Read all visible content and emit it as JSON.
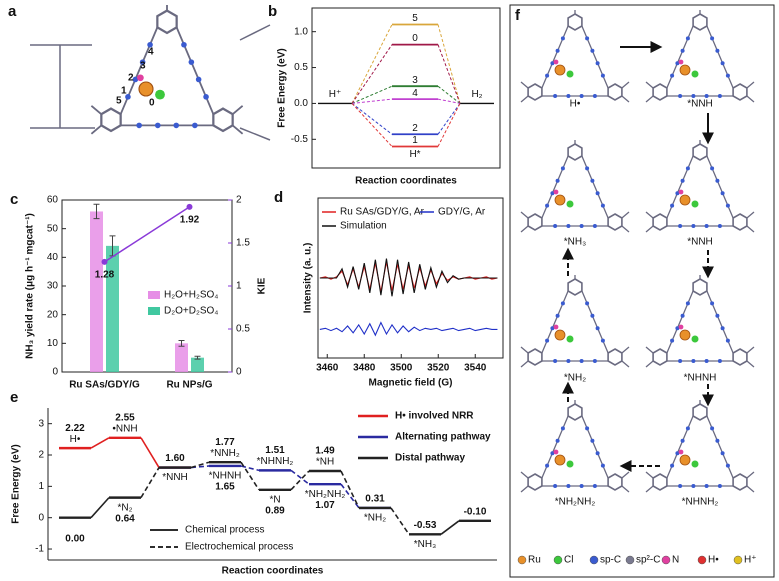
{
  "panel_labels": [
    "a",
    "b",
    "c",
    "d",
    "e",
    "f"
  ],
  "panel_a": {
    "site_labels": [
      "0",
      "1",
      "2",
      "3",
      "4",
      "5"
    ]
  },
  "chart_data": [
    {
      "type": "levels",
      "y_label": "Free Energy (eV)",
      "x_label": "Reaction coordinates",
      "ylim": [
        -0.9,
        1.33
      ],
      "yticks": [
        -0.5,
        {
          "value": 0,
          "label": "0.0"
        },
        0.5,
        {
          "value": 1,
          "label": "1.0"
        }
      ],
      "reference": 0,
      "start_label": "H⁺",
      "end_label": "H₂",
      "series": [
        {
          "name": "5",
          "color": "#d9a63a",
          "values": [
            1.1
          ]
        },
        {
          "name": "0",
          "color": "#a01848",
          "values": [
            0.82
          ]
        },
        {
          "name": "3",
          "color": "#2e7d32",
          "values": [
            0.24
          ]
        },
        {
          "name": "4",
          "color": "#c040d0",
          "values": [
            0.06
          ]
        },
        {
          "name": "2",
          "color": "#3040c8",
          "values": [
            -0.43
          ]
        },
        {
          "name": "1",
          "color": "#e03838",
          "values": [
            -0.6
          ],
          "note": "H*"
        }
      ]
    },
    {
      "type": "bar",
      "y_label": "NH₃ yield rate (μg h⁻¹ mgcat⁻¹)",
      "y2_label": "KIE",
      "categories": [
        "Ru SAs/GDY/G",
        "Ru NPs/G"
      ],
      "series": [
        {
          "name": "H₂O+H₂SO₄",
          "color": "#e68ee6",
          "values": [
            56,
            10
          ],
          "errors": [
            2.5,
            1
          ]
        },
        {
          "name": "D₂O+D₂SO₄",
          "color": "#40c8a0",
          "values": [
            44,
            5
          ],
          "errors": [
            3.5,
            0.5
          ]
        },
        {
          "axis": "y2",
          "color": "#8a3ad8",
          "values": [
            1.28,
            1.92
          ]
        }
      ],
      "ylim": [
        0,
        60
      ],
      "yticks": [
        0,
        10,
        20,
        30,
        40,
        50,
        60
      ],
      "y2lim": [
        0,
        2
      ],
      "y2ticks": [
        0,
        0.5,
        1,
        1.5,
        2
      ]
    },
    {
      "type": "line",
      "y_label": "Intensity (a. u.)",
      "x_label": "Magnetic field (G)",
      "x": [
        3456,
        3459,
        3462,
        3465,
        3468,
        3471,
        3474,
        3477,
        3480,
        3483,
        3486,
        3489,
        3492,
        3495,
        3498,
        3501,
        3504,
        3507,
        3510,
        3513,
        3516,
        3519,
        3522,
        3525,
        3528,
        3531,
        3534,
        3537,
        3540,
        3543,
        3546,
        3549,
        3552
      ],
      "xlim": [
        3455,
        3555
      ],
      "xticks": [
        3460,
        3480,
        3500,
        3520,
        3540
      ],
      "ylim": [
        0,
        14
      ],
      "series": [
        {
          "name": "Ru SAs/GDY/G, Ar",
          "color": "#e02020",
          "values": [
            7.0,
            7.1,
            6.9,
            7.1,
            7.6,
            6.4,
            7.8,
            6.2,
            8.0,
            6.0,
            8.3,
            5.8,
            8.4,
            5.9,
            8.2,
            6.0,
            8.1,
            6.1,
            7.9,
            6.3,
            7.7,
            6.5,
            7.4,
            6.8,
            7.1,
            6.9,
            7.0,
            7.1,
            6.9,
            7.0,
            7.1,
            6.9,
            7.0
          ]
        },
        {
          "name": "GDY/G, Ar",
          "color": "#2030c8",
          "values": [
            2.5,
            2.6,
            2.4,
            2.6,
            2.3,
            2.8,
            2.2,
            2.9,
            2.1,
            3.0,
            2.0,
            3.1,
            2.1,
            2.9,
            2.2,
            2.8,
            2.3,
            2.7,
            2.4,
            2.6,
            2.5,
            2.6,
            2.4,
            2.5,
            2.6,
            2.4,
            2.5,
            2.6,
            2.4,
            2.5,
            2.6,
            2.5,
            2.5
          ]
        },
        {
          "name": "Simulation",
          "color": "#111111",
          "values": [
            7.0,
            7.0,
            7.0,
            7.0,
            7.8,
            6.2,
            8.0,
            6.0,
            8.3,
            5.7,
            8.6,
            5.5,
            8.7,
            5.4,
            8.6,
            5.6,
            8.4,
            5.7,
            8.2,
            6.0,
            7.9,
            6.2,
            7.6,
            6.6,
            7.2,
            6.9,
            7.0,
            7.0,
            7.0,
            7.0,
            7.0,
            7.0,
            7.0
          ]
        }
      ]
    },
    {
      "type": "energy_profile",
      "y_label": "Free Energy (eV)",
      "x_label": "Reaction coordinates",
      "ylim": [
        -1.35,
        3.5
      ],
      "yticks": [
        -1,
        0,
        1,
        2,
        3
      ],
      "series": [
        {
          "name": "H• involved NRR",
          "color": "#e02020",
          "values": [
            2.22,
            2.55,
            1.6,
            null,
            null,
            null,
            null,
            null,
            null
          ],
          "value_labels": [
            "2.22",
            "2.55",
            null,
            null,
            null,
            null,
            null,
            null,
            null
          ],
          "point_labels": [
            "H•",
            "•NNH",
            null,
            null,
            null,
            null,
            null,
            null,
            null
          ],
          "connectors": [
            "solid",
            "solid",
            null,
            null,
            null,
            null,
            null,
            null
          ]
        },
        {
          "name": "Alternating pathway",
          "color": "#2a2aa0",
          "values": [
            null,
            null,
            1.6,
            1.65,
            1.51,
            1.07,
            0.31,
            null,
            null
          ],
          "value_labels": [
            null,
            null,
            null,
            "1.65",
            "1.51",
            "1.07",
            null,
            null,
            null
          ],
          "point_labels": [
            null,
            null,
            null,
            "*NHNH",
            "*NHNH₂",
            "*NH₂NH₂",
            null,
            null,
            null
          ],
          "connectors": [
            null,
            null,
            "dashed",
            "dashed",
            "dashed",
            "dashed",
            null,
            null
          ]
        },
        {
          "name": "Distal pathway",
          "color": "#222222",
          "values": [
            0,
            0.64,
            1.6,
            1.77,
            0.89,
            1.49,
            0.31,
            -0.53,
            -0.1
          ],
          "value_labels": [
            "0.00",
            "0.64",
            "1.60",
            "1.77",
            "0.89",
            "1.49",
            "0.31",
            "-0.53",
            "-0.10"
          ],
          "point_labels": [
            null,
            "*N₂",
            "*NNH",
            "*NNH₂",
            "*N",
            "*NH",
            "*NH₂",
            "*NH₃",
            null
          ],
          "connectors": [
            "solid",
            "dashed",
            "dashed",
            "dashed",
            "dashed",
            "dashed",
            "dashed",
            "solid"
          ]
        }
      ],
      "process_legend": [
        {
          "name": "Chemical process",
          "style": "solid"
        },
        {
          "name": "Electrochemical process",
          "style": "dashed"
        }
      ]
    }
  ],
  "panel_f": {
    "states": [
      "H•",
      "*NNH",
      "*NH₃",
      "*NNH",
      "*NH₂",
      "*NHNH",
      "*NH₂NH₂",
      "*NHNH₂"
    ],
    "legend": [
      {
        "name": "Ru",
        "color": "#e8902a"
      },
      {
        "name": "Cl",
        "color": "#3cc83c"
      },
      {
        "name": "sp-C",
        "color": "#3a5bd0"
      },
      {
        "name": "sp²-C",
        "color": "#7a7a90"
      },
      {
        "name": "N",
        "color": "#e040a0"
      },
      {
        "name": "H•",
        "color": "#e03030"
      },
      {
        "name": "H⁺",
        "color": "#e0c020"
      }
    ]
  }
}
